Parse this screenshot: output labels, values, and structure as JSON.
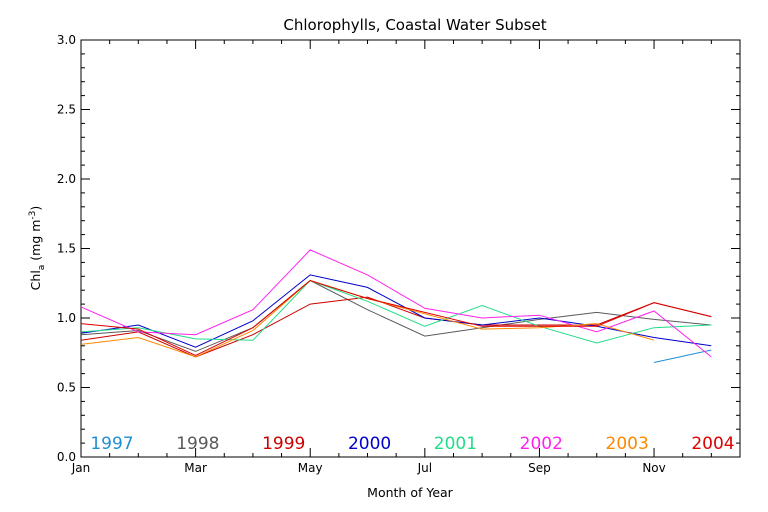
{
  "chart_data": {
    "type": "line",
    "title": "Chlorophylls, Coastal Water Subset",
    "xlabel": "Month of Year",
    "ylabel": {
      "base": "Chl",
      "sub": "a",
      "units_pre": " (mg m",
      "sup": "-3",
      "units_post": ")"
    },
    "ylim": [
      0.0,
      3.0
    ],
    "xlim": [
      1,
      12.5
    ],
    "grid": false,
    "legend_placement": "bottom",
    "y_ticks": [
      "0.0",
      "0.5",
      "1.0",
      "1.5",
      "2.0",
      "2.5",
      "3.0"
    ],
    "x_ticks": [
      {
        "x": 1,
        "label": "Jan"
      },
      {
        "x": 3,
        "label": "Mar"
      },
      {
        "x": 5,
        "label": "May"
      },
      {
        "x": 7,
        "label": "Jul"
      },
      {
        "x": 9,
        "label": "Sep"
      },
      {
        "x": 11,
        "label": "Nov"
      }
    ],
    "x": [
      1,
      2,
      3,
      4,
      5,
      6,
      7,
      8,
      9,
      10,
      11,
      12
    ],
    "series": [
      {
        "name": "1997",
        "color": "#1f8fd2",
        "values": [
          null,
          null,
          null,
          null,
          null,
          null,
          null,
          null,
          null,
          null,
          0.68,
          0.77
        ]
      },
      {
        "name": "1998",
        "color": "#5a5a5a",
        "values": [
          0.88,
          0.91,
          0.76,
          0.93,
          1.27,
          1.06,
          0.87,
          0.93,
          0.99,
          1.04,
          0.99,
          0.95
        ]
      },
      {
        "name": "1999",
        "color": "#cc0000",
        "values": [
          0.84,
          0.9,
          0.72,
          0.88,
          1.1,
          1.15,
          1.0,
          0.95,
          0.95,
          0.95,
          1.11,
          1.01
        ]
      },
      {
        "name": "2000",
        "color": "#0000cc",
        "values": [
          0.89,
          0.95,
          0.79,
          0.98,
          1.31,
          1.22,
          1.0,
          0.95,
          1.0,
          0.94,
          0.86,
          0.8
        ]
      },
      {
        "name": "2001",
        "color": "#22dd88",
        "values": [
          0.9,
          0.93,
          0.85,
          0.84,
          1.27,
          1.12,
          0.94,
          1.09,
          0.94,
          0.82,
          0.93,
          0.95
        ]
      },
      {
        "name": "2002",
        "color": "#ff22ee",
        "values": [
          1.08,
          0.9,
          0.88,
          1.06,
          1.49,
          1.31,
          1.07,
          1.0,
          1.02,
          0.9,
          1.05,
          0.72
        ]
      },
      {
        "name": "2003",
        "color": "#ff8800",
        "values": [
          0.81,
          0.86,
          0.72,
          0.91,
          1.27,
          1.14,
          1.03,
          0.92,
          0.93,
          0.96,
          0.84,
          null
        ]
      },
      {
        "name": "2004",
        "color": "#dd0000",
        "values": [
          0.96,
          0.92,
          0.73,
          0.93,
          1.27,
          1.14,
          1.04,
          0.94,
          0.94,
          0.94,
          1.11,
          1.01
        ]
      }
    ]
  }
}
